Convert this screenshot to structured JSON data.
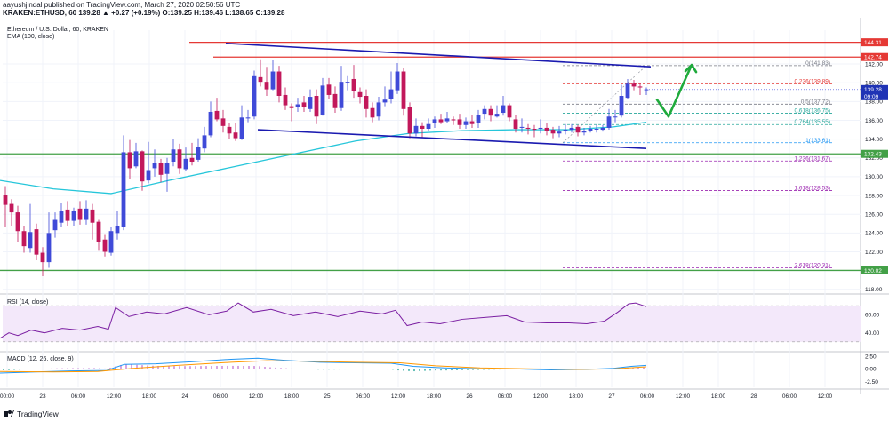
{
  "header": {
    "line1": "aayushjindal published on TradingView.com, March 27, 2020 02:50:56 UTC",
    "line2": "KRAKEN:ETHUSD, 60  139.28  ▲ +0.27 (+0.19%)  O:139.25  H:139.46  L:138.65  C:139.28"
  },
  "chart_data": {
    "type": "candlestick",
    "title": "Ethereum / U.S. Dollar, 60, KRAKEN",
    "indicator_label": "EMA (100, close)",
    "ylim": [
      117.6,
      145.6
    ],
    "price_ticks": [
      "142.00",
      "140.00",
      "138.00",
      "136.00",
      "134.00",
      "132.00",
      "130.00",
      "128.00",
      "126.00",
      "124.00",
      "122.00",
      "120.00",
      "118.00"
    ],
    "time_ticks": [
      "00:00",
      "23",
      "06:00",
      "12:00",
      "18:00",
      "24",
      "06:00",
      "12:00",
      "18:00",
      "25",
      "06:00",
      "12:00",
      "18:00",
      "26",
      "06:00",
      "12:00",
      "18:00",
      "27",
      "06:00",
      "12:00",
      "18:00",
      "28",
      "06:00",
      "12:00"
    ],
    "horizontal_levels": [
      {
        "label": "144.31",
        "price": 144.31,
        "color": "#e53935"
      },
      {
        "label": "142.74",
        "price": 142.74,
        "color": "#e53935"
      },
      {
        "label": "132.43",
        "price": 132.43,
        "color": "#43a047"
      },
      {
        "label": "120.02",
        "price": 120.02,
        "color": "#43a047"
      }
    ],
    "last_price": {
      "label": "139.28",
      "sub": "09:09",
      "price": 139.28
    },
    "fibonacci": [
      {
        "label": "0(141.83)",
        "price": 141.83,
        "color": "#787b86"
      },
      {
        "label": "0.236(139.89)",
        "price": 139.89,
        "color": "#e53935"
      },
      {
        "label": "0.5(137.72)",
        "price": 137.72,
        "color": "#787b86"
      },
      {
        "label": "0.618(136.75)",
        "price": 136.75,
        "color": "#26a69a"
      },
      {
        "label": "0.764(135.55)",
        "price": 135.55,
        "color": "#26a69a"
      },
      {
        "label": "1(133.61)",
        "price": 133.61,
        "color": "#2196f3"
      },
      {
        "label": "1.236(131.67)",
        "price": 131.67,
        "color": "#9c27b0"
      },
      {
        "label": "1.618(128.53)",
        "price": 128.53,
        "color": "#9c27b0"
      },
      {
        "label": "2.618(120.31)",
        "price": 120.31,
        "color": "#9c27b0"
      }
    ],
    "channel": {
      "upper": [
        {
          "t": 254,
          "p": 144.2
        },
        {
          "t": 732,
          "p": 141.7
        }
      ],
      "lower": [
        {
          "t": 290,
          "p": 135.0
        },
        {
          "t": 727,
          "p": 133.0
        }
      ]
    },
    "ohlc": [
      [
        128.1,
        127.0,
        129.0,
        124.6
      ],
      [
        127.1,
        126.2,
        127.6,
        124.7
      ],
      [
        126.2,
        124.2,
        126.9,
        123.0
      ],
      [
        124.2,
        122.6,
        124.7,
        121.9
      ],
      [
        122.4,
        124.1,
        127.1,
        121.9
      ],
      [
        124.4,
        121.7,
        125.0,
        121.1
      ],
      [
        121.9,
        120.9,
        122.5,
        119.4
      ],
      [
        120.9,
        124.0,
        126.2,
        120.3
      ],
      [
        124.3,
        125.4,
        126.2,
        123.5
      ],
      [
        125.1,
        126.3,
        127.2,
        124.6
      ],
      [
        126.5,
        125.3,
        127.4,
        124.7
      ],
      [
        125.3,
        126.4,
        126.7,
        124.7
      ],
      [
        126.6,
        125.4,
        127.4,
        124.9
      ],
      [
        125.4,
        126.6,
        127.5,
        124.9
      ],
      [
        126.5,
        125.1,
        127.1,
        123.3
      ],
      [
        125.2,
        123.0,
        125.4,
        122.1
      ],
      [
        123.3,
        122.0,
        123.8,
        121.5
      ],
      [
        121.9,
        124.2,
        124.6,
        121.6
      ],
      [
        124.0,
        124.7,
        126.4,
        123.3
      ],
      [
        124.6,
        132.6,
        134.4,
        124.3
      ],
      [
        132.6,
        130.9,
        133.9,
        129.8
      ],
      [
        131.1,
        132.7,
        133.6,
        130.9
      ],
      [
        132.7,
        129.5,
        132.8,
        128.5
      ],
      [
        129.6,
        130.7,
        133.7,
        129.3
      ],
      [
        130.9,
        131.5,
        132.9,
        130.0
      ],
      [
        131.5,
        130.2,
        131.9,
        129.4
      ],
      [
        130.3,
        131.5,
        132.0,
        128.4
      ],
      [
        131.6,
        132.9,
        134.0,
        131.1
      ],
      [
        132.9,
        130.9,
        133.5,
        130.3
      ],
      [
        130.8,
        131.9,
        133.1,
        130.6
      ],
      [
        132.0,
        131.6,
        133.6,
        131.2
      ],
      [
        131.8,
        133.2,
        134.1,
        131.6
      ],
      [
        133.0,
        134.4,
        135.3,
        132.6
      ],
      [
        134.4,
        136.9,
        138.0,
        134.2
      ],
      [
        137.0,
        136.1,
        138.4,
        135.9
      ],
      [
        136.2,
        135.4,
        137.1,
        134.7
      ],
      [
        135.3,
        134.6,
        135.7,
        134.0
      ],
      [
        134.7,
        134.1,
        135.7,
        133.8
      ],
      [
        134.0,
        136.3,
        137.6,
        133.9
      ],
      [
        136.2,
        136.3,
        137.1,
        135.8
      ],
      [
        136.4,
        140.7,
        141.3,
        136.1
      ],
      [
        140.6,
        140.1,
        142.5,
        139.6
      ],
      [
        140.1,
        139.3,
        141.7,
        138.6
      ],
      [
        139.3,
        141.2,
        142.4,
        139.2
      ],
      [
        141.2,
        138.6,
        141.8,
        137.9
      ],
      [
        138.7,
        137.6,
        139.5,
        137.1
      ],
      [
        137.5,
        137.3,
        137.8,
        135.9
      ],
      [
        137.4,
        137.7,
        138.4,
        136.9
      ],
      [
        137.9,
        137.4,
        138.6,
        136.9
      ],
      [
        137.2,
        138.5,
        139.3,
        136.9
      ],
      [
        138.6,
        136.4,
        139.3,
        135.6
      ],
      [
        136.6,
        139.7,
        140.5,
        136.5
      ],
      [
        139.8,
        138.7,
        140.5,
        138.3
      ],
      [
        138.8,
        137.3,
        139.6,
        136.8
      ],
      [
        137.3,
        140.1,
        141.8,
        137.0
      ],
      [
        140.1,
        140.1,
        140.7,
        139.2
      ],
      [
        140.4,
        139.1,
        141.9,
        138.4
      ],
      [
        139.0,
        138.5,
        139.5,
        137.8
      ],
      [
        138.6,
        137.2,
        139.3,
        136.3
      ],
      [
        137.3,
        136.3,
        137.9,
        135.8
      ],
      [
        136.4,
        137.9,
        138.5,
        136.0
      ],
      [
        137.9,
        138.2,
        139.6,
        137.5
      ],
      [
        138.3,
        139.3,
        141.2,
        137.8
      ],
      [
        139.2,
        141.2,
        142.1,
        138.8
      ],
      [
        141.2,
        137.2,
        141.6,
        136.5
      ],
      [
        137.4,
        134.6,
        137.9,
        134.1
      ],
      [
        134.6,
        135.4,
        136.2,
        134.3
      ],
      [
        135.4,
        135.1,
        135.8,
        134.2
      ],
      [
        135.1,
        135.6,
        136.2,
        134.9
      ],
      [
        135.7,
        136.1,
        136.4,
        135.2
      ],
      [
        136.1,
        135.8,
        136.7,
        135.6
      ],
      [
        135.9,
        136.2,
        136.9,
        135.7
      ],
      [
        136.1,
        136.0,
        136.4,
        135.5
      ],
      [
        136.1,
        135.5,
        136.7,
        135.1
      ],
      [
        135.5,
        135.9,
        136.3,
        135.1
      ],
      [
        135.9,
        135.6,
        136.6,
        135.2
      ],
      [
        135.7,
        136.6,
        137.1,
        135.2
      ],
      [
        136.7,
        137.2,
        137.6,
        136.1
      ],
      [
        137.2,
        136.5,
        137.6,
        135.9
      ],
      [
        136.4,
        136.7,
        137.6,
        136.3
      ],
      [
        136.8,
        137.6,
        138.6,
        136.5
      ],
      [
        137.6,
        136.3,
        137.8,
        135.9
      ],
      [
        136.1,
        135.1,
        136.6,
        134.7
      ],
      [
        135.2,
        135.3,
        136.2,
        134.7
      ],
      [
        135.2,
        135.1,
        135.6,
        134.5
      ],
      [
        135.1,
        135.0,
        135.5,
        134.2
      ],
      [
        135.1,
        135.2,
        136.1,
        134.6
      ],
      [
        135.2,
        134.9,
        135.7,
        134.4
      ],
      [
        135.0,
        134.6,
        135.3,
        134.1
      ],
      [
        134.6,
        134.8,
        135.4,
        134.2
      ],
      [
        134.9,
        135.0,
        135.6,
        134.5
      ],
      [
        135.0,
        135.2,
        135.6,
        134.7
      ],
      [
        135.3,
        134.7,
        135.5,
        134.3
      ],
      [
        134.7,
        134.9,
        135.2,
        134.4
      ],
      [
        134.9,
        135.1,
        135.4,
        134.7
      ],
      [
        135.1,
        135.1,
        135.5,
        134.7
      ],
      [
        135.0,
        135.2,
        135.5,
        134.8
      ],
      [
        135.2,
        136.4,
        137.2,
        135.0
      ],
      [
        136.4,
        136.4,
        137.1,
        135.8
      ],
      [
        136.5,
        138.6,
        139.8,
        136.3
      ],
      [
        138.4,
        139.9,
        140.4,
        138.3
      ],
      [
        139.9,
        139.6,
        140.3,
        139.2
      ],
      [
        139.6,
        139.5,
        139.9,
        138.7
      ],
      [
        139.3,
        139.3,
        139.5,
        138.7
      ]
    ],
    "ema100": [
      {
        "t": 0,
        "p": 129.6
      },
      {
        "t": 60,
        "p": 128.7
      },
      {
        "t": 125,
        "p": 128.2
      },
      {
        "t": 190,
        "p": 129.6
      },
      {
        "t": 260,
        "p": 131.0
      },
      {
        "t": 330,
        "p": 132.4
      },
      {
        "t": 400,
        "p": 133.8
      },
      {
        "t": 460,
        "p": 134.6
      },
      {
        "t": 520,
        "p": 134.9
      },
      {
        "t": 580,
        "p": 135.0
      },
      {
        "t": 640,
        "p": 135.0
      },
      {
        "t": 690,
        "p": 135.3
      },
      {
        "t": 727,
        "p": 135.8
      }
    ],
    "green_arrow": [
      {
        "t": 739,
        "p": 138.2
      },
      {
        "t": 752,
        "p": 136.4
      },
      {
        "t": 778,
        "p": 141.9
      }
    ],
    "rsi": {
      "label": "RSI (14, close)",
      "ticks": [
        "60.00",
        "40.00"
      ],
      "ylim": [
        20,
        82
      ],
      "band": [
        30,
        70
      ],
      "points": [
        {
          "t": 0,
          "p": 34
        },
        {
          "t": 10,
          "p": 40
        },
        {
          "t": 20,
          "p": 37
        },
        {
          "t": 35,
          "p": 43
        },
        {
          "t": 50,
          "p": 40
        },
        {
          "t": 70,
          "p": 45
        },
        {
          "t": 90,
          "p": 43
        },
        {
          "t": 110,
          "p": 47
        },
        {
          "t": 122,
          "p": 44
        },
        {
          "t": 130,
          "p": 68
        },
        {
          "t": 145,
          "p": 58
        },
        {
          "t": 165,
          "p": 63
        },
        {
          "t": 185,
          "p": 61
        },
        {
          "t": 210,
          "p": 68
        },
        {
          "t": 235,
          "p": 60
        },
        {
          "t": 255,
          "p": 64
        },
        {
          "t": 268,
          "p": 73
        },
        {
          "t": 285,
          "p": 63
        },
        {
          "t": 305,
          "p": 66
        },
        {
          "t": 330,
          "p": 59
        },
        {
          "t": 355,
          "p": 63
        },
        {
          "t": 380,
          "p": 58
        },
        {
          "t": 405,
          "p": 64
        },
        {
          "t": 430,
          "p": 61
        },
        {
          "t": 445,
          "p": 65
        },
        {
          "t": 458,
          "p": 48
        },
        {
          "t": 475,
          "p": 52
        },
        {
          "t": 495,
          "p": 50
        },
        {
          "t": 520,
          "p": 55
        },
        {
          "t": 545,
          "p": 57
        },
        {
          "t": 570,
          "p": 59
        },
        {
          "t": 590,
          "p": 52
        },
        {
          "t": 615,
          "p": 51
        },
        {
          "t": 640,
          "p": 51
        },
        {
          "t": 660,
          "p": 50
        },
        {
          "t": 680,
          "p": 53
        },
        {
          "t": 695,
          "p": 63
        },
        {
          "t": 707,
          "p": 72
        },
        {
          "t": 715,
          "p": 73
        },
        {
          "t": 727,
          "p": 69
        }
      ]
    },
    "macd": {
      "label": "MACD (12, 26, close, 9)",
      "ticks": [
        "2.50",
        "0.00",
        "-2.50"
      ],
      "ylim": [
        -3.6,
        3.2
      ],
      "macd_line": [
        {
          "t": 0,
          "p": -0.8
        },
        {
          "t": 40,
          "p": -0.6
        },
        {
          "t": 80,
          "p": -0.4
        },
        {
          "t": 120,
          "p": -0.3
        },
        {
          "t": 140,
          "p": 0.9
        },
        {
          "t": 175,
          "p": 1.0
        },
        {
          "t": 215,
          "p": 1.4
        },
        {
          "t": 260,
          "p": 1.9
        },
        {
          "t": 290,
          "p": 2.1
        },
        {
          "t": 320,
          "p": 1.7
        },
        {
          "t": 360,
          "p": 1.3
        },
        {
          "t": 400,
          "p": 1.2
        },
        {
          "t": 440,
          "p": 1.1
        },
        {
          "t": 465,
          "p": 0.5
        },
        {
          "t": 500,
          "p": 0.2
        },
        {
          "t": 540,
          "p": 0.0
        },
        {
          "t": 580,
          "p": 0.0
        },
        {
          "t": 620,
          "p": -0.2
        },
        {
          "t": 660,
          "p": -0.1
        },
        {
          "t": 690,
          "p": 0.1
        },
        {
          "t": 710,
          "p": 0.5
        },
        {
          "t": 727,
          "p": 0.7
        }
      ],
      "signal_line": [
        {
          "t": 0,
          "p": -0.5
        },
        {
          "t": 60,
          "p": -0.6
        },
        {
          "t": 110,
          "p": -0.5
        },
        {
          "t": 150,
          "p": 0.1
        },
        {
          "t": 200,
          "p": 0.7
        },
        {
          "t": 260,
          "p": 1.3
        },
        {
          "t": 300,
          "p": 1.6
        },
        {
          "t": 350,
          "p": 1.5
        },
        {
          "t": 400,
          "p": 1.3
        },
        {
          "t": 450,
          "p": 1.2
        },
        {
          "t": 490,
          "p": 0.6
        },
        {
          "t": 540,
          "p": 0.2
        },
        {
          "t": 600,
          "p": 0.0
        },
        {
          "t": 650,
          "p": -0.1
        },
        {
          "t": 690,
          "p": 0.0
        },
        {
          "t": 727,
          "p": 0.4
        }
      ]
    }
  },
  "footer": {
    "brand": "TradingView"
  }
}
